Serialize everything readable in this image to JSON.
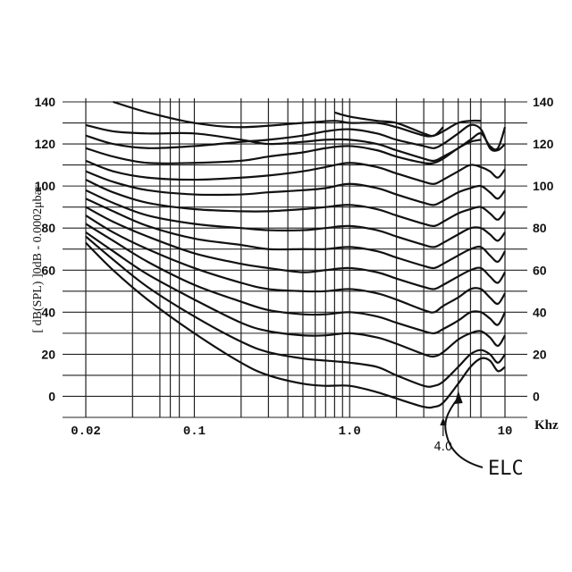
{
  "chart_data": {
    "type": "line",
    "xscale": "log",
    "xlim": [
      0.02,
      10
    ],
    "ylim": [
      -10,
      140
    ],
    "xunit": "Khz",
    "ylabel": "[ dB(SPL) ]0dB - 0.0002μbar",
    "x_tick_labels": [
      {
        "value": 0.02,
        "label": "0.02"
      },
      {
        "value": 0.1,
        "label": "0.1"
      },
      {
        "value": 1.0,
        "label": "1.0"
      },
      {
        "value": 10,
        "label": "10"
      }
    ],
    "y_ticks": [
      0,
      20,
      40,
      60,
      80,
      100,
      120,
      140
    ],
    "x_gridlines": [
      0.02,
      0.04,
      0.06,
      0.07,
      0.08,
      0.1,
      0.2,
      0.3,
      0.4,
      0.5,
      0.6,
      0.7,
      0.8,
      0.9,
      1.0,
      2,
      3,
      4,
      5,
      6,
      7,
      10
    ],
    "y_gridlines": [
      -10,
      0,
      10,
      20,
      30,
      40,
      50,
      60,
      70,
      80,
      90,
      100,
      110,
      120,
      130,
      140
    ],
    "annotations": [
      {
        "text": "4.0",
        "x": 4.0
      },
      {
        "text": "ELC",
        "points_to_x": 5.0
      }
    ],
    "series": [
      {
        "x": [
          0.02,
          0.03,
          0.05,
          0.1,
          0.2,
          0.3,
          0.5,
          0.7,
          1.0,
          1.5,
          2.0,
          3.0,
          3.5,
          4.0,
          5.0,
          6.0,
          7.0,
          8.0,
          9.0,
          10.0
        ],
        "values": [
          73,
          60,
          46,
          30,
          16,
          10,
          6,
          5,
          5,
          2,
          -1,
          -5,
          -5,
          -3,
          6,
          14,
          18,
          17,
          12,
          14
        ]
      },
      {
        "x": [
          0.02,
          0.03,
          0.05,
          0.1,
          0.2,
          0.3,
          0.5,
          0.7,
          1.0,
          1.5,
          2.0,
          3.0,
          3.5,
          4.0,
          5.0,
          6.0,
          7.0,
          8.0,
          9.0,
          10.0
        ],
        "values": [
          76,
          65,
          52,
          38,
          26,
          21,
          18,
          17,
          16,
          14,
          10,
          5,
          5,
          7,
          14,
          20,
          22,
          20,
          16,
          20
        ]
      },
      {
        "x": [
          0.02,
          0.03,
          0.05,
          0.1,
          0.2,
          0.3,
          0.5,
          0.7,
          1.0,
          1.5,
          2.0,
          3.0,
          3.5,
          4.0,
          5.0,
          6.0,
          7.0,
          8.0,
          9.0,
          10.0
        ],
        "values": [
          78,
          69,
          58,
          46,
          35,
          31,
          29,
          29,
          30,
          28,
          25,
          20,
          19,
          21,
          27,
          30,
          31,
          28,
          24,
          29
        ]
      },
      {
        "x": [
          0.02,
          0.03,
          0.05,
          0.1,
          0.2,
          0.3,
          0.5,
          0.7,
          1.0,
          1.5,
          2.0,
          3.0,
          3.5,
          4.0,
          5.0,
          6.0,
          7.0,
          8.0,
          9.0,
          10.0
        ],
        "values": [
          82,
          74,
          64,
          53,
          45,
          41,
          39,
          39,
          40,
          38,
          35,
          31,
          30,
          32,
          36,
          40,
          40,
          37,
          34,
          40
        ]
      },
      {
        "x": [
          0.02,
          0.03,
          0.05,
          0.1,
          0.2,
          0.3,
          0.5,
          0.7,
          1.0,
          1.5,
          2.0,
          3.0,
          3.5,
          4.0,
          5.0,
          6.0,
          7.0,
          8.0,
          9.0,
          10.0
        ],
        "values": [
          86,
          78,
          70,
          61,
          54,
          51,
          50,
          50,
          51,
          49,
          46,
          41,
          40,
          43,
          47,
          51,
          51,
          47,
          44,
          49
        ]
      },
      {
        "x": [
          0.02,
          0.03,
          0.05,
          0.1,
          0.2,
          0.3,
          0.5,
          0.7,
          1.0,
          1.5,
          2.0,
          3.0,
          3.5,
          4.0,
          5.0,
          6.0,
          7.0,
          8.0,
          9.0,
          10.0
        ],
        "values": [
          90,
          83,
          76,
          68,
          63,
          61,
          59,
          60,
          61,
          59,
          56,
          52,
          51,
          53,
          57,
          60,
          61,
          57,
          54,
          59
        ]
      },
      {
        "x": [
          0.02,
          0.03,
          0.05,
          0.1,
          0.2,
          0.3,
          0.5,
          0.7,
          1.0,
          1.5,
          2.0,
          3.0,
          3.5,
          4.0,
          5.0,
          6.0,
          7.0,
          8.0,
          9.0,
          10.0
        ],
        "values": [
          94,
          88,
          81,
          75,
          72,
          70,
          70,
          70,
          71,
          69,
          66,
          62,
          61,
          63,
          67,
          70,
          71,
          67,
          64,
          69
        ]
      },
      {
        "x": [
          0.02,
          0.03,
          0.05,
          0.1,
          0.2,
          0.3,
          0.5,
          0.7,
          1.0,
          1.5,
          2.0,
          3.0,
          3.5,
          4.0,
          5.0,
          6.0,
          7.0,
          8.0,
          9.0,
          10.0
        ],
        "values": [
          98,
          92,
          86,
          82,
          80,
          79,
          79,
          80,
          81,
          79,
          76,
          72,
          71,
          73,
          77,
          80,
          80,
          77,
          74,
          78
        ]
      },
      {
        "x": [
          0.02,
          0.03,
          0.05,
          0.1,
          0.2,
          0.3,
          0.5,
          0.7,
          1.0,
          1.5,
          2.0,
          3.0,
          3.5,
          4.0,
          5.0,
          6.0,
          7.0,
          8.0,
          9.0,
          10.0
        ],
        "values": [
          103,
          97,
          92,
          89,
          88,
          88,
          89,
          90,
          91,
          89,
          86,
          82,
          81,
          83,
          87,
          89,
          90,
          87,
          84,
          88
        ]
      },
      {
        "x": [
          0.02,
          0.03,
          0.05,
          0.1,
          0.2,
          0.3,
          0.5,
          0.7,
          1.0,
          1.5,
          2.0,
          3.0,
          3.5,
          4.0,
          5.0,
          6.0,
          7.0,
          8.0,
          9.0,
          10.0
        ],
        "values": [
          107,
          102,
          98,
          96,
          96,
          97,
          98,
          99,
          101,
          99,
          96,
          92,
          91,
          93,
          97,
          99,
          100,
          97,
          94,
          98
        ]
      },
      {
        "x": [
          0.02,
          0.03,
          0.05,
          0.1,
          0.2,
          0.3,
          0.5,
          0.7,
          1.0,
          1.5,
          2.0,
          3.0,
          3.5,
          4.0,
          5.0,
          6.0,
          7.0,
          8.0,
          9.0,
          10.0
        ],
        "values": [
          112,
          107,
          104,
          103,
          104,
          105,
          107,
          109,
          111,
          109,
          106,
          102,
          101,
          103,
          107,
          110,
          109,
          107,
          104,
          108
        ]
      },
      {
        "x": [
          0.02,
          0.03,
          0.05,
          0.1,
          0.2,
          0.3,
          0.5,
          0.7,
          1.0,
          1.5,
          2.0,
          3.0,
          3.5,
          4.0,
          5.0,
          6.0,
          7.0
        ],
        "values": [
          118,
          114,
          111,
          111,
          112,
          114,
          116,
          118,
          119,
          117,
          114,
          111,
          111,
          113,
          118,
          121,
          122
        ]
      },
      {
        "x": [
          0.02,
          0.03,
          0.05,
          0.1,
          0.2,
          0.3,
          0.5,
          0.7,
          1.0,
          1.5,
          2.0,
          3.0,
          3.5,
          4.0,
          5.0,
          6.0,
          7.0,
          8.0,
          9.0,
          10.0
        ],
        "values": [
          124,
          120,
          118,
          119,
          121,
          122,
          124,
          126,
          127,
          125,
          122,
          119,
          118,
          120,
          125,
          129,
          127,
          118,
          117,
          120
        ]
      },
      {
        "x": [
          0.02,
          0.03,
          0.05,
          0.1,
          0.2,
          0.3,
          0.5,
          0.7,
          1.0,
          1.5,
          2.0,
          3.0,
          3.5,
          4.0,
          5.0,
          6.0,
          7.0,
          8.0,
          9.0,
          10.0
        ],
        "values": [
          129,
          126,
          125,
          125,
          122,
          120,
          121,
          122,
          122,
          120,
          117,
          113,
          112,
          114,
          118,
          122,
          125,
          119,
          118,
          128
        ]
      },
      {
        "x": [
          0.03,
          0.05,
          0.1,
          0.2,
          0.5,
          0.8,
          1.0,
          1.5,
          2.0,
          3.0,
          3.5,
          4.0,
          5.0,
          6.0,
          7.0
        ],
        "values": [
          140,
          135,
          130,
          128,
          130,
          131,
          130,
          130,
          128,
          124,
          124,
          126,
          130,
          131,
          131
        ]
      },
      {
        "x": [
          0.8,
          1.0,
          1.5,
          2.0,
          3.0,
          3.5,
          4.0
        ],
        "values": [
          135,
          133,
          131,
          130,
          125,
          124,
          128
        ]
      }
    ]
  }
}
